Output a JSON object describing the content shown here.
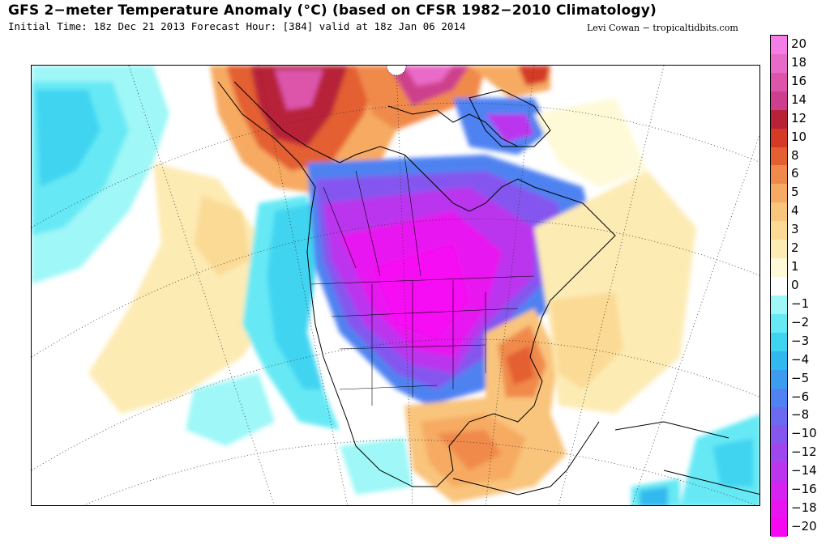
{
  "header": {
    "title": "GFS 2−meter Temperature Anomaly (°C) (based on CFSR 1982−2010 Climatology)",
    "subtitle": "Initial Time: 18z Dec 21 2013 Forecast Hour: [384] valid at 18z Jan 06 2014",
    "credit": "Levi Cowan − tropicaltidbits.com"
  },
  "map": {
    "region": "North America",
    "field": "2-meter temperature anomaly"
  },
  "colorbar": {
    "levels": [
      {
        "label": "20",
        "color": "#f57ee6"
      },
      {
        "label": "18",
        "color": "#e96bc8"
      },
      {
        "label": "16",
        "color": "#dc55ab"
      },
      {
        "label": "14",
        "color": "#cd3f8c"
      },
      {
        "label": "12",
        "color": "#b82237"
      },
      {
        "label": "10",
        "color": "#d43a26"
      },
      {
        "label": "8",
        "color": "#e45f31"
      },
      {
        "label": "6",
        "color": "#f08a4b"
      },
      {
        "label": "5",
        "color": "#f6aa62"
      },
      {
        "label": "4",
        "color": "#f9c47c"
      },
      {
        "label": "3",
        "color": "#fbda95"
      },
      {
        "label": "2",
        "color": "#fdebb4"
      },
      {
        "label": "1",
        "color": "#fefad8"
      },
      {
        "label": "0",
        "color": "#ffffff"
      },
      {
        "label": "−1",
        "color": "#9ff7f7"
      },
      {
        "label": "−2",
        "color": "#66e9f4"
      },
      {
        "label": "−3",
        "color": "#3fd4f1"
      },
      {
        "label": "−4",
        "color": "#31b9ef"
      },
      {
        "label": "−5",
        "color": "#3c9df0"
      },
      {
        "label": "−6",
        "color": "#5082f1"
      },
      {
        "label": "−8",
        "color": "#6a6bf1"
      },
      {
        "label": "−10",
        "color": "#8557ef"
      },
      {
        "label": "−12",
        "color": "#a046ee"
      },
      {
        "label": "−14",
        "color": "#bb34ee"
      },
      {
        "label": "−16",
        "color": "#d523f0"
      },
      {
        "label": "−18",
        "color": "#e815f0"
      },
      {
        "label": "−20",
        "color": "#f608f3"
      }
    ]
  }
}
